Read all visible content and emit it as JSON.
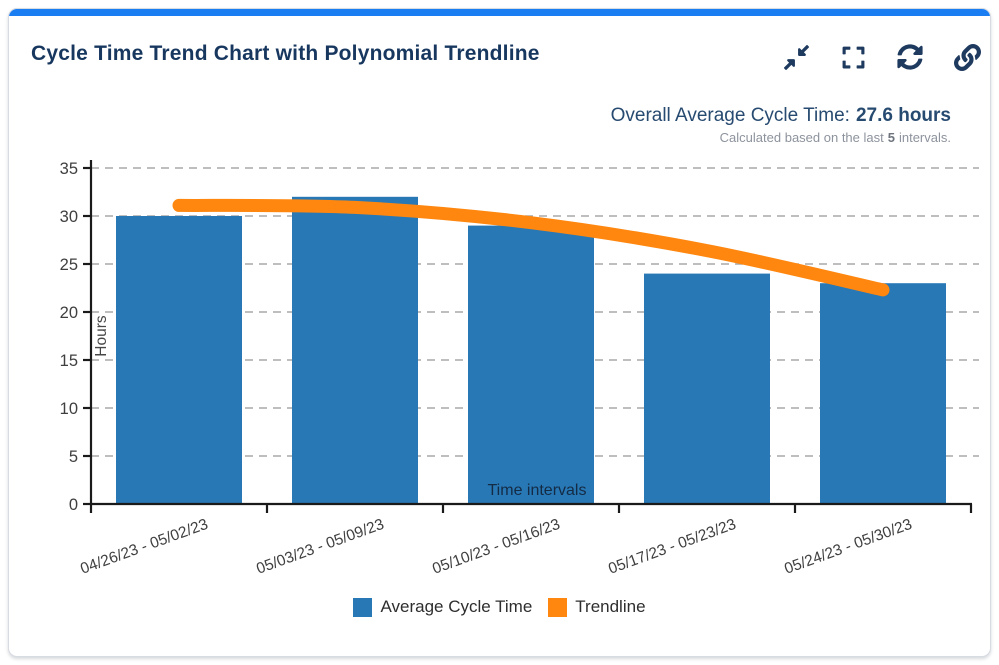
{
  "card": {
    "title": "Cycle Time Trend Chart with Polynomial Trendline",
    "accent_color": "#1b7df2",
    "icon_color": "#1e3a5f",
    "icons": [
      "collapse-icon",
      "fullscreen-icon",
      "refresh-icon",
      "link-icon"
    ]
  },
  "summary": {
    "label": "Overall Average Cycle Time:",
    "value": "27.6 hours",
    "note_prefix": "Calculated based on the last",
    "note_bold": "5",
    "note_suffix": "intervals."
  },
  "chart_data": {
    "type": "bar",
    "title": "",
    "xlabel": "Time intervals",
    "ylabel": "Hours",
    "ylim": [
      0,
      35
    ],
    "ytick_step": 5,
    "yticks": [
      0,
      5,
      10,
      15,
      20,
      25,
      30,
      35
    ],
    "grid": true,
    "grid_style": "dashed",
    "legend_position": "bottom",
    "categories": [
      "04/26/23 - 05/02/23",
      "05/03/23 - 05/09/23",
      "05/10/23 - 05/16/23",
      "05/17/23 - 05/23/23",
      "05/24/23 - 05/30/23"
    ],
    "series": [
      {
        "name": "Average Cycle Time",
        "type": "bar",
        "color": "#2878b5",
        "values": [
          30,
          32,
          29,
          24,
          23
        ]
      },
      {
        "name": "Trendline",
        "type": "line",
        "color": "#ff870f",
        "values": [
          31.1,
          30.9,
          29.3,
          26.4,
          22.3
        ]
      }
    ]
  }
}
